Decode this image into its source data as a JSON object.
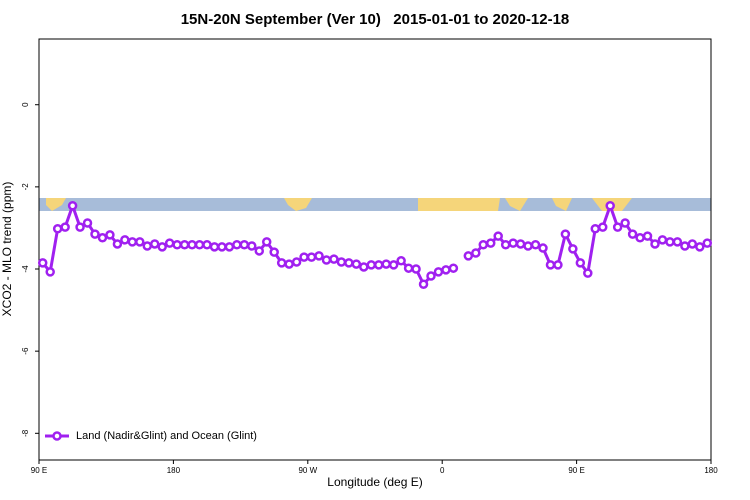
{
  "chart_data": {
    "type": "line",
    "title": "15N-20N September (Ver 10)   2015-01-01 to 2020-12-18",
    "x_label": "Longitude (deg E)",
    "y_label": "XCO2 - MLO trend (ppm)",
    "x": [
      92.5,
      97.5,
      102.5,
      107.5,
      112.5,
      117.5,
      122.5,
      127.5,
      132.5,
      137.5,
      142.5,
      147.5,
      152.5,
      157.5,
      162.5,
      167.5,
      172.5,
      177.5,
      182.5,
      187.5,
      192.5,
      197.5,
      202.5,
      207.5,
      212.5,
      217.5,
      222.5,
      227.5,
      232.5,
      237.5,
      242.5,
      247.5,
      252.5,
      257.5,
      262.5,
      267.5,
      272.5,
      277.5,
      282.5,
      287.5,
      292.5,
      297.5,
      302.5,
      307.5,
      312.5,
      317.5,
      322.5,
      327.5,
      332.5,
      337.5,
      342.5,
      347.5,
      352.5,
      357.5,
      362.5,
      367.5,
      372.5,
      377.5,
      382.5,
      387.5,
      392.5,
      397.5,
      402.5,
      407.5,
      412.5,
      417.5,
      422.5,
      427.5,
      432.5,
      437.5,
      442.5,
      447.5,
      452.5,
      457.5,
      462.5,
      467.5,
      472.5,
      477.5,
      482.5,
      487.5,
      492.5,
      497.5,
      502.5,
      507.5,
      512.5,
      517.5,
      522.5,
      527.5,
      532.5,
      537.5
    ],
    "series": [
      {
        "name": "Land (Nadir&Glint) and Ocean (Glint)",
        "color": "#a020f0",
        "values": [
          -3.85,
          -4.07,
          -3.02,
          -2.98,
          -2.46,
          -2.98,
          -2.88,
          -3.15,
          -3.24,
          -3.17,
          -3.39,
          -3.29,
          -3.34,
          -3.34,
          -3.44,
          -3.39,
          -3.46,
          -3.37,
          -3.41,
          -3.41,
          -3.41,
          -3.41,
          -3.41,
          -3.46,
          -3.46,
          -3.46,
          -3.41,
          -3.41,
          -3.44,
          -3.56,
          -3.34,
          -3.59,
          -3.85,
          -3.88,
          -3.83,
          -3.71,
          -3.71,
          -3.68,
          -3.78,
          -3.76,
          -3.83,
          -3.85,
          -3.88,
          -3.95,
          -3.9,
          -3.9,
          -3.88,
          -3.9,
          -3.8,
          -3.98,
          -4.0,
          -4.37,
          -4.17,
          -4.07,
          -4.02,
          -3.98,
          null,
          -3.68,
          -3.61,
          -3.41,
          -3.37,
          -3.2,
          -3.41,
          -3.37,
          -3.39,
          -3.44,
          -3.41,
          -3.49,
          -3.9,
          -3.9,
          -3.15,
          -3.51,
          -3.85,
          -4.1,
          -3.02,
          -2.98,
          -2.46,
          -2.98,
          -2.88,
          -3.15,
          -3.24,
          -3.2,
          -3.39,
          -3.29,
          -3.34,
          -3.34,
          -3.44,
          -3.39,
          -3.46,
          -3.37
        ]
      }
    ],
    "xlim": [
      90,
      540
    ],
    "xticks": [
      {
        "value": 90,
        "label": "90 E"
      },
      180,
      {
        "value": 270,
        "label": "90 W"
      },
      {
        "value": 360,
        "label": "0"
      },
      {
        "value": 450,
        "label": "90 E"
      },
      {
        "value": 540,
        "label": "180"
      }
    ],
    "ylim": [
      -8.65,
      1.6
    ],
    "yticks": [
      0,
      -2,
      -4,
      -6,
      -8
    ],
    "legend": "bottom-left"
  }
}
